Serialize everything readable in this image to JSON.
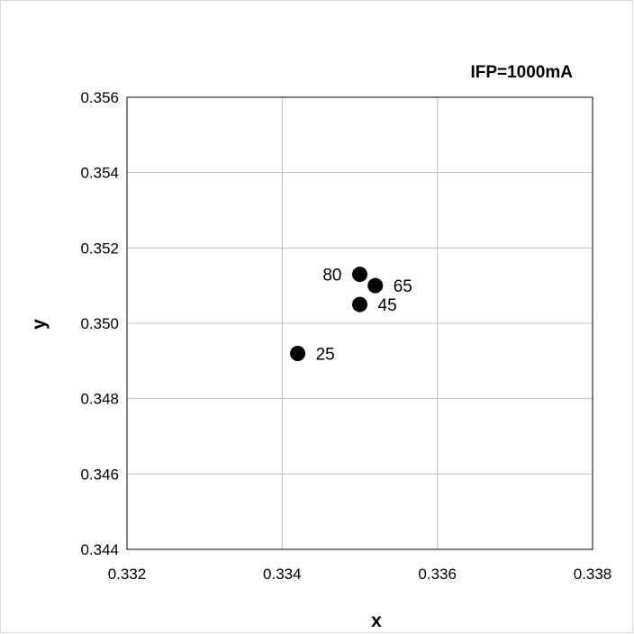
{
  "chart_data": {
    "type": "scatter",
    "annotation": "IFP=1000mA",
    "xlabel": "x",
    "ylabel": "y",
    "xlim": [
      0.332,
      0.338
    ],
    "ylim": [
      0.344,
      0.356
    ],
    "xticks": [
      "0.332",
      "0.334",
      "0.336",
      "0.338"
    ],
    "yticks": [
      "0.344",
      "0.346",
      "0.348",
      "0.350",
      "0.352",
      "0.354",
      "0.356"
    ],
    "grid": true,
    "marker_color": "#000000",
    "points": [
      {
        "x": 0.3342,
        "y": 0.3492,
        "label": "25",
        "label_side": "right"
      },
      {
        "x": 0.335,
        "y": 0.3505,
        "label": "45",
        "label_side": "right"
      },
      {
        "x": 0.3352,
        "y": 0.351,
        "label": "65",
        "label_side": "right"
      },
      {
        "x": 0.335,
        "y": 0.3513,
        "label": "80",
        "label_side": "left"
      }
    ]
  }
}
